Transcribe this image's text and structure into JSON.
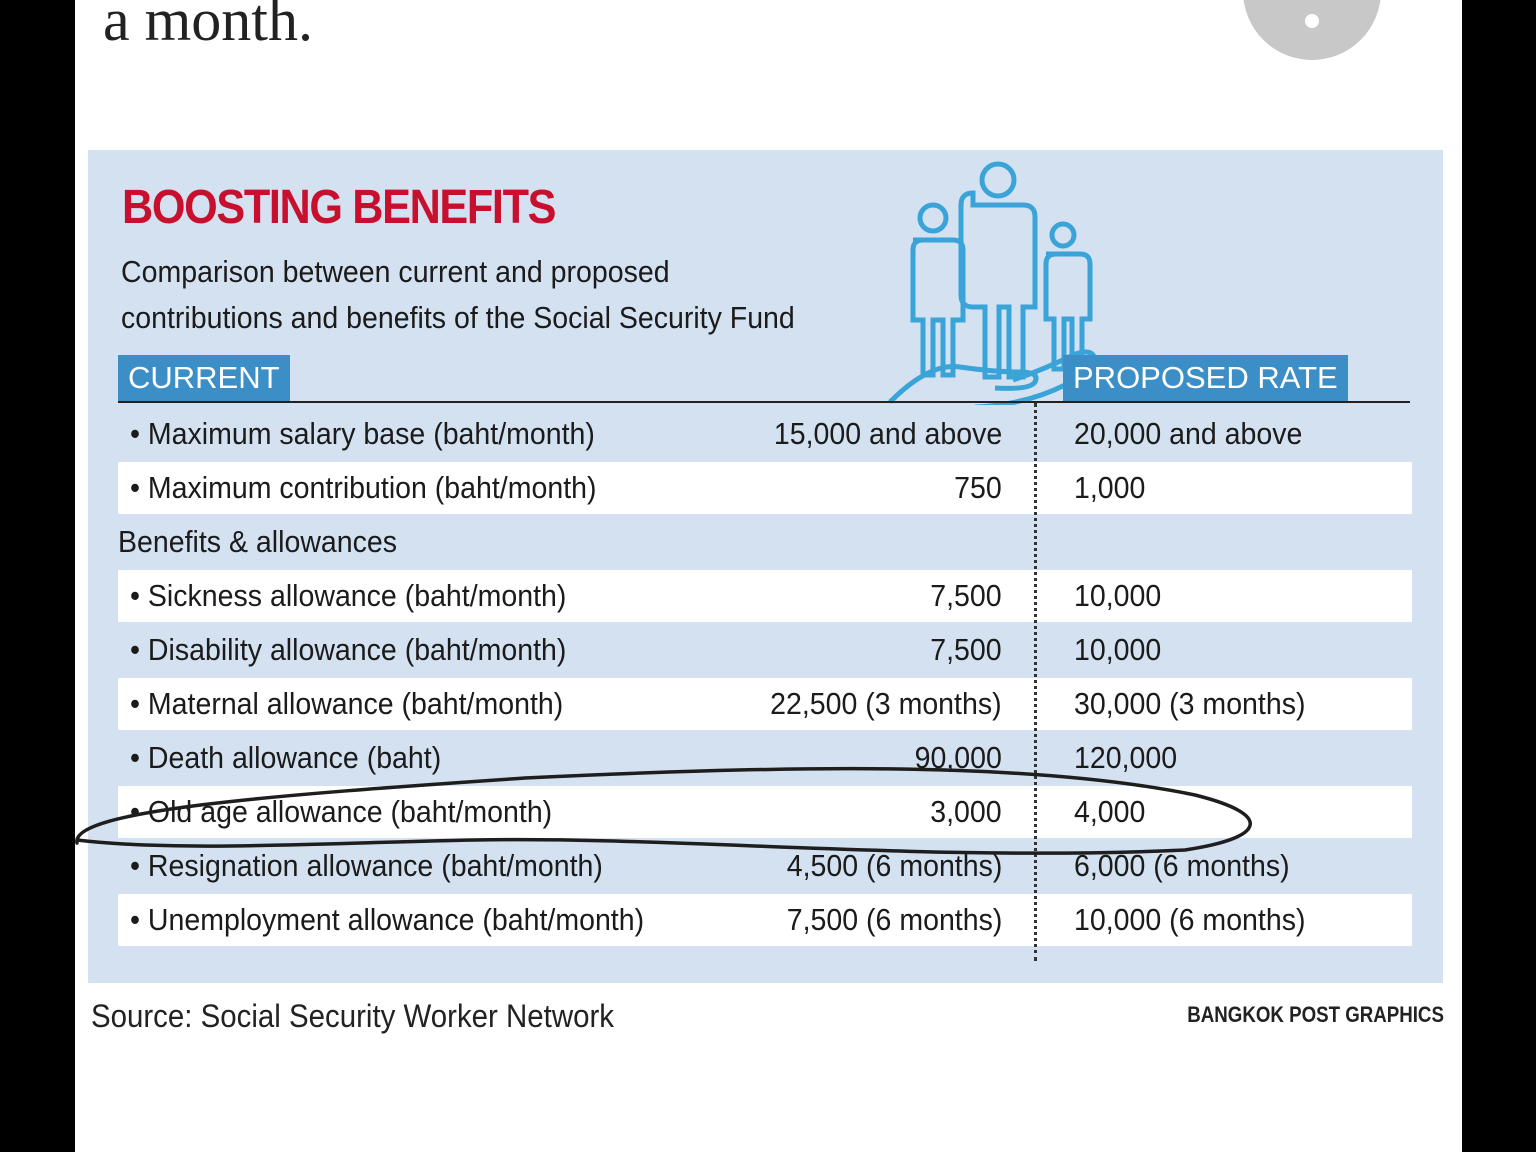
{
  "article": {
    "lead_text": "a month."
  },
  "infographic": {
    "title": "BOOSTING BENEFITS",
    "subtitle_lines": [
      "Comparison between current and proposed",
      "contributions and benefits of the Social Security Fund"
    ],
    "current_header": "CURRENT",
    "proposed_header": "PROPOSED RATE",
    "rows": [
      {
        "label": "Maximum salary base (baht/month)",
        "current": "15,000 and above",
        "proposed": "20,000 and above"
      },
      {
        "label": "Maximum contribution (baht/month)",
        "current": "750",
        "proposed": "1,000"
      },
      {
        "section": "Benefits & allowances"
      },
      {
        "label": "Sickness allowance (baht/month)",
        "current": "7,500",
        "proposed": "10,000"
      },
      {
        "label": "Disability allowance (baht/month)",
        "current": "7,500",
        "proposed": "10,000"
      },
      {
        "label": "Maternal  allowance (baht/month)",
        "current": "22,500 (3 months)",
        "proposed": "30,000 (3 months)"
      },
      {
        "label": "Death allowance (baht)",
        "current": "90,000",
        "proposed": "120,000"
      },
      {
        "label": "Old age allowance (baht/month)",
        "current": "3,000",
        "proposed": "4,000"
      },
      {
        "label": "Resignation allowance (baht/month)",
        "current": "4,500 (6 months)",
        "proposed": "6,000 (6 months)"
      },
      {
        "label": "Unemployment allowance (baht/month)",
        "current": "7,500 (6 months)",
        "proposed": "10,000 (6 months)"
      }
    ],
    "source": "Source: Social Security Worker Network",
    "credit": "BANGKOK POST GRAPHICS"
  }
}
